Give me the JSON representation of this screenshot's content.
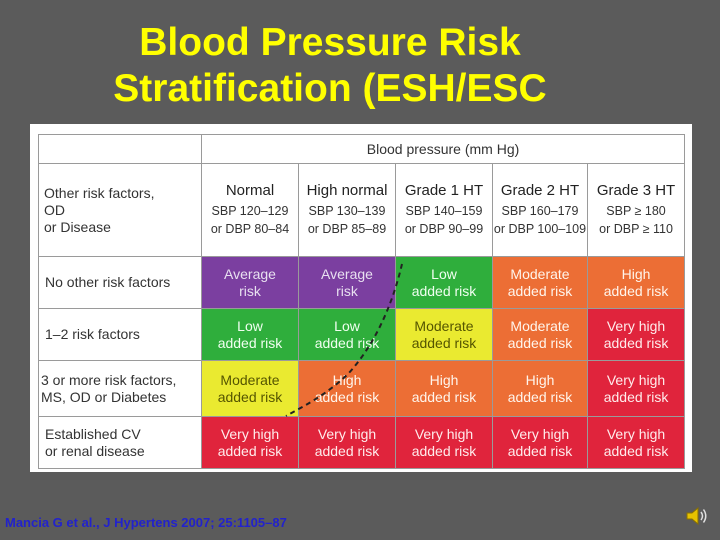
{
  "title": {
    "line1": "Blood Pressure Risk",
    "line2": "Stratification (ESH/ESC"
  },
  "table": {
    "bp_header": "Blood pressure (mm Hg)",
    "corner": [
      "Other risk factors,",
      "OD",
      "or Disease"
    ],
    "columns": [
      {
        "name": "Normal",
        "sbp": "SBP 120–129",
        "dbp": "or DBP 80–84"
      },
      {
        "name": "High normal",
        "sbp": "SBP 130–139",
        "dbp": "or DBP 85–89"
      },
      {
        "name": "Grade 1 HT",
        "sbp": "SBP 140–159",
        "dbp": "or DBP 90–99"
      },
      {
        "name": "Grade 2 HT",
        "sbp": "SBP 160–179",
        "dbp": "or DBP 100–109"
      },
      {
        "name": "Grade 3 HT",
        "sbp": "SBP ≥ 180",
        "dbp": "or DBP ≥ 110"
      }
    ],
    "rows": [
      {
        "label": [
          "No other risk factors"
        ],
        "cells": [
          {
            "l1": "Average",
            "l2": "risk",
            "color": "#7b3fa0",
            "text_color": "#e8e0f0"
          },
          {
            "l1": "Average",
            "l2": "risk",
            "color": "#7b3fa0",
            "text_color": "#e8e0f0"
          },
          {
            "l1": "Low",
            "l2": "added risk",
            "color": "#2fae3c",
            "text_color": "#f0fff0"
          },
          {
            "l1": "Moderate",
            "l2": "added risk",
            "color": "#ec6e35",
            "text_color": "#fff5ec"
          },
          {
            "l1": "High",
            "l2": "added risk",
            "color": "#ec6e35",
            "text_color": "#fff5ec"
          }
        ]
      },
      {
        "label": [
          "1–2 risk factors"
        ],
        "cells": [
          {
            "l1": "Low",
            "l2": "added risk",
            "color": "#2fae3c",
            "text_color": "#f0fff0"
          },
          {
            "l1": "Low",
            "l2": "added risk",
            "color": "#2fae3c",
            "text_color": "#f0fff0"
          },
          {
            "l1": "Moderate",
            "l2": "added risk",
            "color": "#eaea30",
            "text_color": "#555500"
          },
          {
            "l1": "Moderate",
            "l2": "added risk",
            "color": "#ec6e35",
            "text_color": "#fff5ec"
          },
          {
            "l1": "Very high",
            "l2": "added risk",
            "color": "#e0243c",
            "text_color": "#ffecec"
          }
        ]
      },
      {
        "label": [
          "3 or more risk factors,",
          "MS, OD or Diabetes"
        ],
        "cells": [
          {
            "l1": "Moderate",
            "l2": "added risk",
            "color": "#eaea30",
            "text_color": "#555500"
          },
          {
            "l1": "High",
            "l2": "added risk",
            "color": "#ec6e35",
            "text_color": "#fff5ec"
          },
          {
            "l1": "High",
            "l2": "added risk",
            "color": "#ec6e35",
            "text_color": "#fff5ec"
          },
          {
            "l1": "High",
            "l2": "added risk",
            "color": "#ec6e35",
            "text_color": "#fff5ec"
          },
          {
            "l1": "Very high",
            "l2": "added risk",
            "color": "#e0243c",
            "text_color": "#ffecec"
          }
        ]
      },
      {
        "label": [
          "Established CV",
          "or renal disease"
        ],
        "cells": [
          {
            "l1": "Very high",
            "l2": "added risk",
            "color": "#e0243c",
            "text_color": "#ffecec"
          },
          {
            "l1": "Very high",
            "l2": "added risk",
            "color": "#e0243c",
            "text_color": "#ffecec"
          },
          {
            "l1": "Very high",
            "l2": "added risk",
            "color": "#e0243c",
            "text_color": "#ffecec"
          },
          {
            "l1": "Very high",
            "l2": "added risk",
            "color": "#e0243c",
            "text_color": "#ffecec"
          },
          {
            "l1": "Very high",
            "l2": "added risk",
            "color": "#e0243c",
            "text_color": "#ffecec"
          }
        ]
      }
    ]
  },
  "citation": "Mancia G et al., J Hypertens 2007; 25:1105–87",
  "icons": {
    "speaker": "speaker-icon"
  }
}
